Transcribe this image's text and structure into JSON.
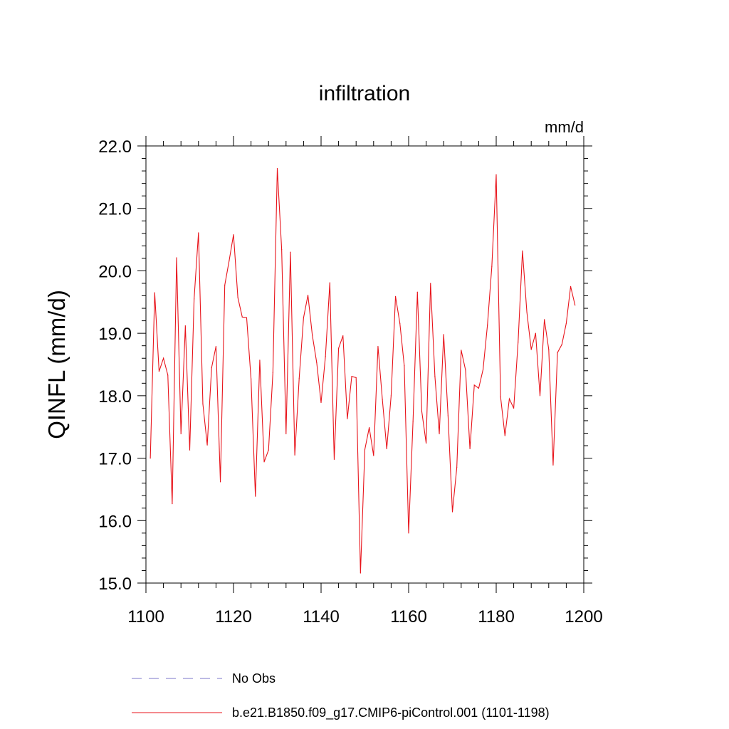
{
  "chart_data": {
    "type": "line",
    "title": "infiltration",
    "units_label": "mm/d",
    "ylabel": "QINFL  (mm/d)",
    "xlabel": "",
    "xlim": [
      1100,
      1200
    ],
    "ylim": [
      15.0,
      22.0
    ],
    "x_ticks": [
      1100,
      1120,
      1140,
      1160,
      1180,
      1200
    ],
    "y_ticks": [
      "15.0",
      "16.0",
      "17.0",
      "18.0",
      "19.0",
      "20.0",
      "21.0",
      "22.0"
    ],
    "grid": false,
    "legend": [
      {
        "name": "No Obs",
        "color": "#7b74c9",
        "style": "dashed"
      },
      {
        "name": "b.e21.B1850.f09_g17.CMIP6-piControl.001 (1101-1198)",
        "color": "#e8141b",
        "style": "solid"
      }
    ],
    "series": [
      {
        "name": "b.e21.B1850.f09_g17.CMIP6-piControl.001 (1101-1198)",
        "color": "#e8141b",
        "x_start": 1101,
        "x_step": 1,
        "values": [
          17.0,
          19.65,
          18.39,
          18.6,
          18.33,
          16.27,
          20.21,
          17.39,
          19.12,
          17.13,
          19.55,
          20.61,
          17.87,
          17.21,
          18.45,
          18.79,
          16.62,
          19.77,
          20.16,
          20.58,
          19.57,
          19.26,
          19.25,
          18.27,
          16.39,
          18.57,
          16.94,
          17.13,
          18.37,
          21.64,
          20.34,
          17.39,
          20.3,
          17.05,
          18.28,
          19.25,
          19.61,
          18.97,
          18.53,
          17.89,
          18.63,
          19.81,
          16.98,
          18.76,
          18.96,
          17.63,
          18.31,
          18.29,
          15.16,
          17.14,
          17.49,
          17.04,
          18.79,
          17.94,
          17.15,
          18.0,
          19.59,
          19.16,
          18.48,
          15.8,
          17.59,
          19.66,
          17.75,
          17.24,
          19.8,
          18.31,
          17.39,
          18.98,
          17.68,
          16.14,
          16.85,
          18.73,
          18.41,
          17.15,
          18.17,
          18.12,
          18.42,
          19.13,
          20.07,
          21.54,
          17.98,
          17.36,
          17.95,
          17.8,
          18.86,
          20.32,
          19.34,
          18.74,
          19.0,
          18.0,
          19.22,
          18.74,
          16.89,
          18.69,
          18.82,
          19.16,
          19.75,
          19.45
        ]
      }
    ]
  }
}
